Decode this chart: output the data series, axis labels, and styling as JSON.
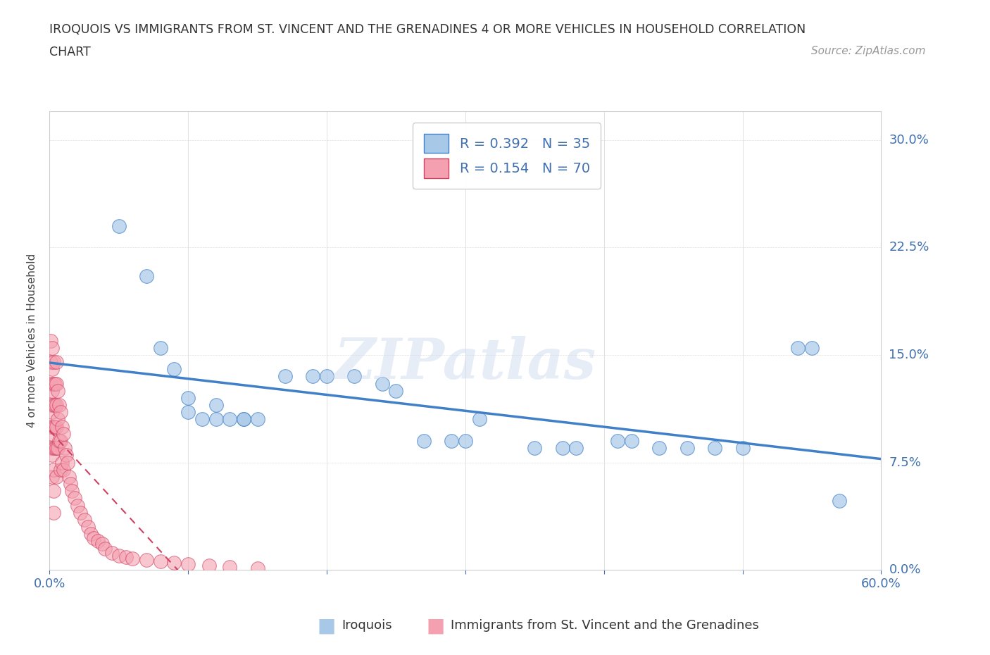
{
  "title_line1": "IROQUOIS VS IMMIGRANTS FROM ST. VINCENT AND THE GRENADINES 4 OR MORE VEHICLES IN HOUSEHOLD CORRELATION",
  "title_line2": "CHART",
  "source_text": "Source: ZipAtlas.com",
  "ylabel": "4 or more Vehicles in Household",
  "xlim": [
    0,
    0.6
  ],
  "ylim": [
    0,
    0.32
  ],
  "xticks": [
    0.0,
    0.1,
    0.2,
    0.3,
    0.4,
    0.5,
    0.6
  ],
  "yticks": [
    0.0,
    0.075,
    0.15,
    0.225,
    0.3
  ],
  "watermark": "ZIPatlas",
  "R_iroquois": 0.392,
  "N_iroquois": 35,
  "R_immigrants": 0.154,
  "N_immigrants": 70,
  "iroquois_color": "#a8c8e8",
  "immigrants_color": "#f4a0b0",
  "trend_iroquois_color": "#4080c8",
  "trend_immigrants_color": "#d04060",
  "iroquois_x": [
    0.05,
    0.07,
    0.08,
    0.09,
    0.1,
    0.1,
    0.11,
    0.12,
    0.12,
    0.13,
    0.14,
    0.14,
    0.15,
    0.17,
    0.19,
    0.2,
    0.22,
    0.24,
    0.25,
    0.27,
    0.29,
    0.3,
    0.31,
    0.35,
    0.37,
    0.38,
    0.41,
    0.42,
    0.44,
    0.46,
    0.48,
    0.5,
    0.54,
    0.55,
    0.57
  ],
  "iroquois_y": [
    0.24,
    0.205,
    0.155,
    0.14,
    0.12,
    0.11,
    0.105,
    0.115,
    0.105,
    0.105,
    0.105,
    0.105,
    0.105,
    0.135,
    0.135,
    0.135,
    0.135,
    0.13,
    0.125,
    0.09,
    0.09,
    0.09,
    0.105,
    0.085,
    0.085,
    0.085,
    0.09,
    0.09,
    0.085,
    0.085,
    0.085,
    0.085,
    0.155,
    0.155,
    0.048
  ],
  "immigrants_x": [
    0.001,
    0.001,
    0.001,
    0.001,
    0.001,
    0.001,
    0.002,
    0.002,
    0.002,
    0.002,
    0.002,
    0.002,
    0.002,
    0.003,
    0.003,
    0.003,
    0.003,
    0.003,
    0.003,
    0.003,
    0.003,
    0.004,
    0.004,
    0.004,
    0.004,
    0.005,
    0.005,
    0.005,
    0.005,
    0.005,
    0.005,
    0.006,
    0.006,
    0.006,
    0.007,
    0.007,
    0.008,
    0.008,
    0.008,
    0.009,
    0.009,
    0.01,
    0.01,
    0.011,
    0.012,
    0.013,
    0.014,
    0.015,
    0.016,
    0.018,
    0.02,
    0.022,
    0.025,
    0.028,
    0.03,
    0.032,
    0.035,
    0.038,
    0.04,
    0.045,
    0.05,
    0.055,
    0.06,
    0.07,
    0.08,
    0.09,
    0.1,
    0.115,
    0.13,
    0.15
  ],
  "immigrants_y": [
    0.16,
    0.145,
    0.13,
    0.115,
    0.1,
    0.085,
    0.155,
    0.14,
    0.125,
    0.11,
    0.095,
    0.08,
    0.065,
    0.145,
    0.13,
    0.115,
    0.1,
    0.085,
    0.07,
    0.055,
    0.04,
    0.13,
    0.115,
    0.1,
    0.085,
    0.145,
    0.13,
    0.115,
    0.1,
    0.085,
    0.065,
    0.125,
    0.105,
    0.085,
    0.115,
    0.09,
    0.11,
    0.09,
    0.07,
    0.1,
    0.075,
    0.095,
    0.07,
    0.085,
    0.08,
    0.075,
    0.065,
    0.06,
    0.055,
    0.05,
    0.045,
    0.04,
    0.035,
    0.03,
    0.025,
    0.022,
    0.02,
    0.018,
    0.015,
    0.012,
    0.01,
    0.009,
    0.008,
    0.007,
    0.006,
    0.005,
    0.004,
    0.003,
    0.002,
    0.001
  ]
}
